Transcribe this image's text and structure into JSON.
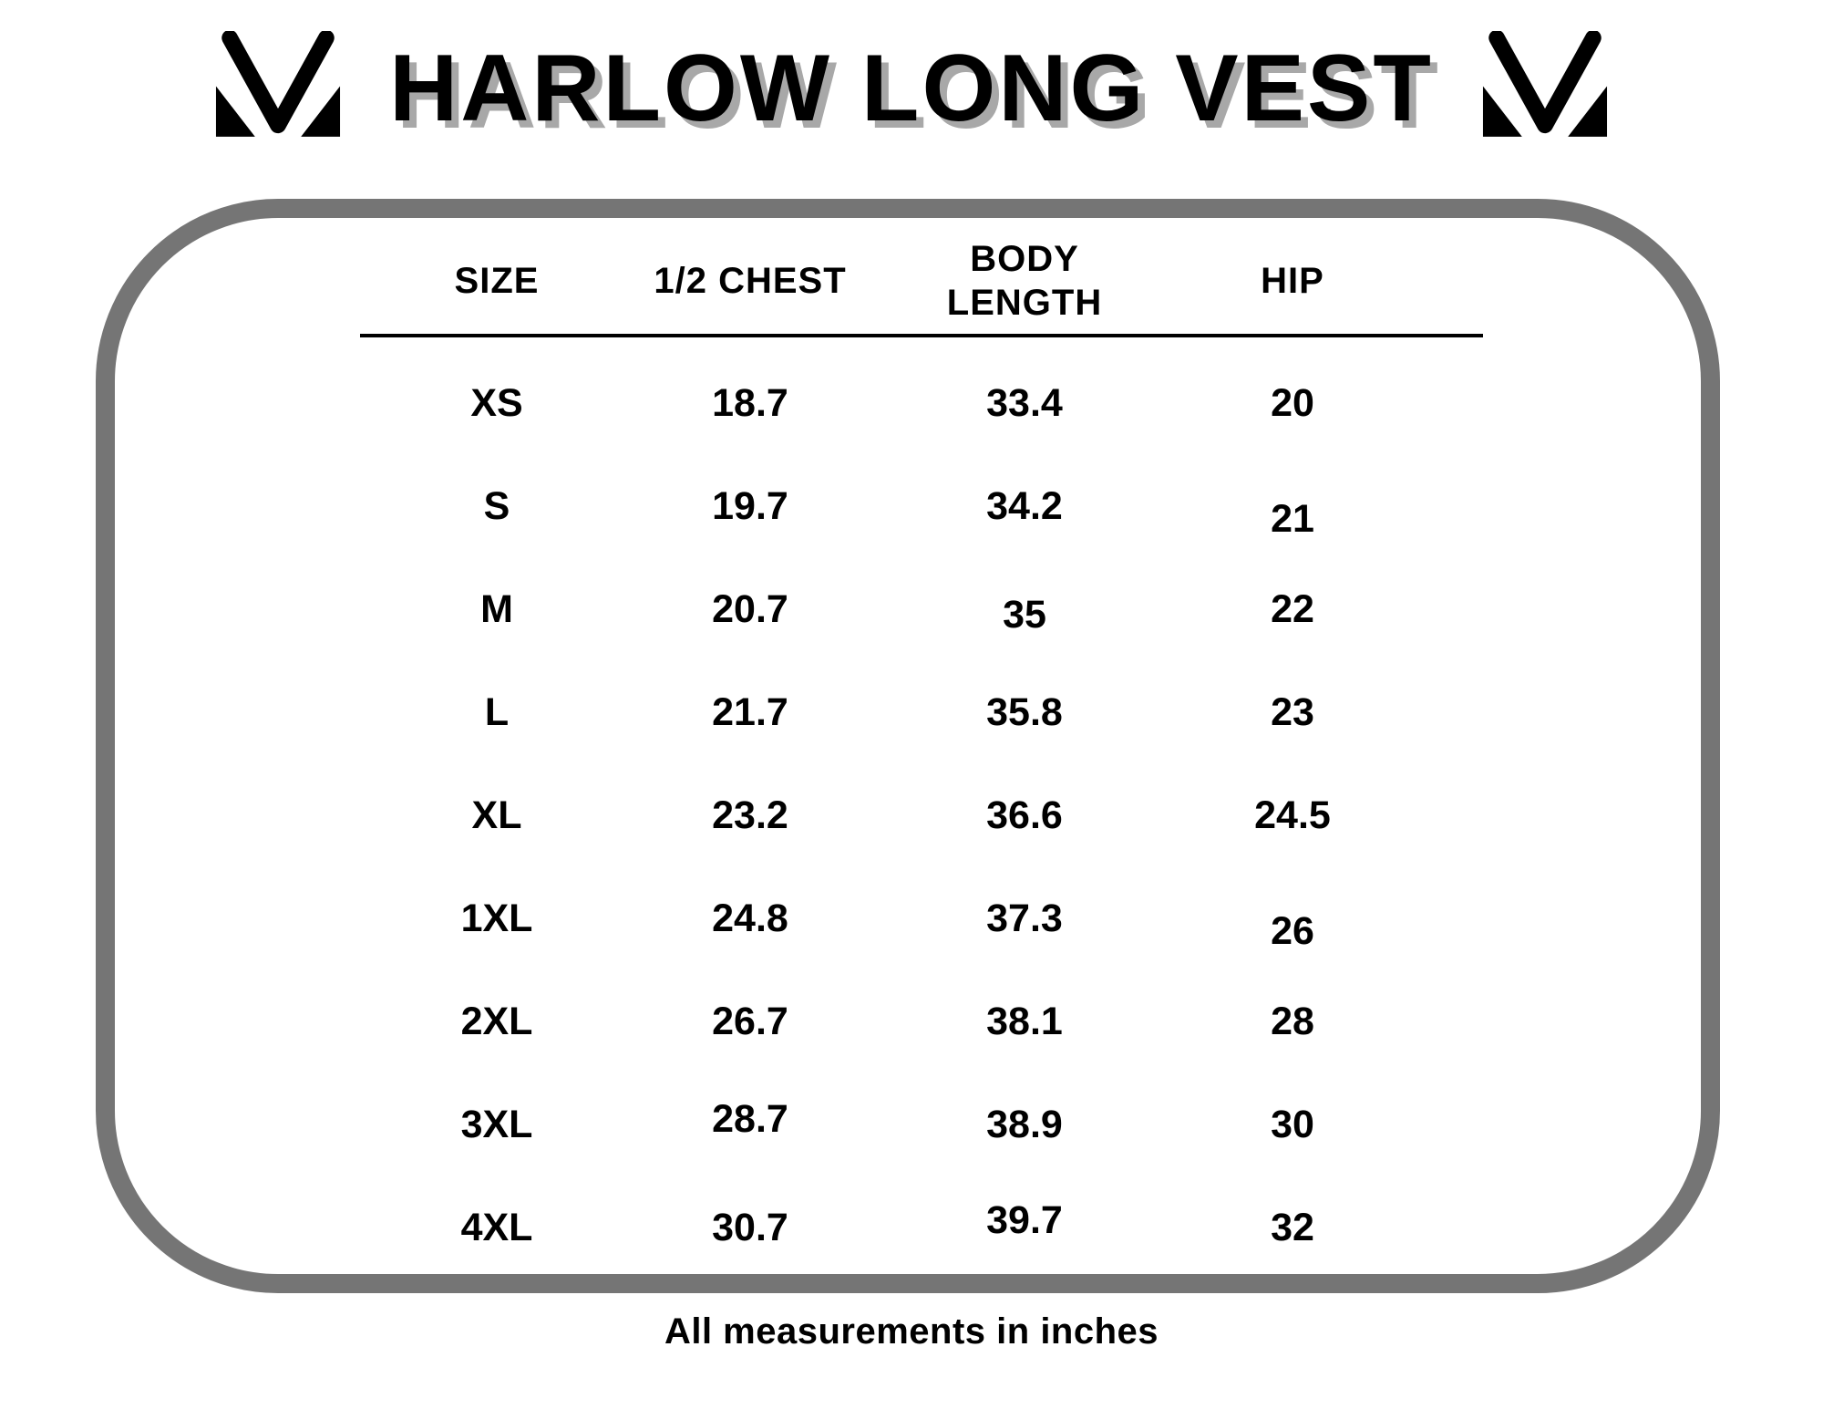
{
  "page": {
    "title": "HARLOW LONG VEST",
    "footer_note": "All measurements in inches"
  },
  "icons": {
    "brand_logo": "brand-m-icon"
  },
  "chart_data": {
    "type": "table",
    "title": "HARLOW LONG VEST",
    "columns": [
      "SIZE",
      "1/2 CHEST",
      "BODY LENGTH",
      "HIP"
    ],
    "rows": [
      [
        "XS",
        "18.7",
        "33.4",
        "20"
      ],
      [
        "S",
        "19.7",
        "34.2",
        "21"
      ],
      [
        "M",
        "20.7",
        "35",
        "22"
      ],
      [
        "L",
        "21.7",
        "35.8",
        "23"
      ],
      [
        "XL",
        "23.2",
        "36.6",
        "24.5"
      ],
      [
        "1XL",
        "24.8",
        "37.3",
        "26"
      ],
      [
        "2XL",
        "26.7",
        "38.1",
        "28"
      ],
      [
        "3XL",
        "28.7",
        "38.9",
        "30"
      ],
      [
        "4XL",
        "30.7",
        "39.7",
        "32"
      ]
    ],
    "note": "All measurements in inches",
    "layout_hints": {
      "grid": false,
      "units": "inches"
    }
  },
  "colors": {
    "text": "#000000",
    "frame_border": "#757575",
    "title_shadow": "#a8a8a8"
  }
}
